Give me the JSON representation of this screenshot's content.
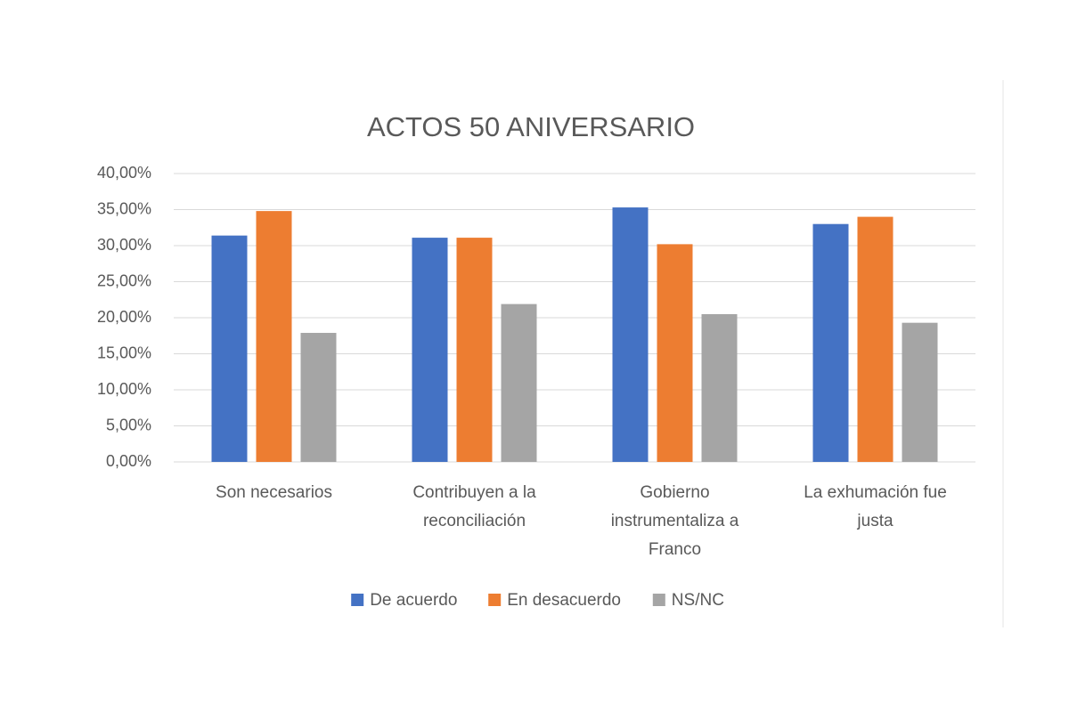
{
  "chart_data": {
    "type": "bar",
    "title": "ACTOS 50 ANIVERSARIO",
    "categories": [
      "Son necesarios",
      "Contribuyen a la reconciliación",
      "Gobierno instrumentaliza a Franco",
      "La exhumación fue justa"
    ],
    "series": [
      {
        "name": "De acuerdo",
        "color": "#4472c4",
        "values": [
          31.4,
          31.1,
          35.3,
          33.0
        ]
      },
      {
        "name": "En desacuerdo",
        "color": "#ed7d31",
        "values": [
          34.8,
          31.1,
          30.2,
          34.0
        ]
      },
      {
        "name": "NS/NC",
        "color": "#a5a5a5",
        "values": [
          17.9,
          21.9,
          20.5,
          19.3
        ]
      }
    ],
    "ylim": [
      0,
      40
    ],
    "yticks": [
      {
        "value": 0,
        "label": "0,00%"
      },
      {
        "value": 5,
        "label": "5,00%"
      },
      {
        "value": 10,
        "label": "10,00%"
      },
      {
        "value": 15,
        "label": "15,00%"
      },
      {
        "value": 20,
        "label": "20,00%"
      },
      {
        "value": 25,
        "label": "25,00%"
      },
      {
        "value": 30,
        "label": "30,00%"
      },
      {
        "value": 35,
        "label": "35,00%"
      },
      {
        "value": 40,
        "label": "40,00%"
      }
    ],
    "grid": true,
    "legend": "bottom"
  }
}
